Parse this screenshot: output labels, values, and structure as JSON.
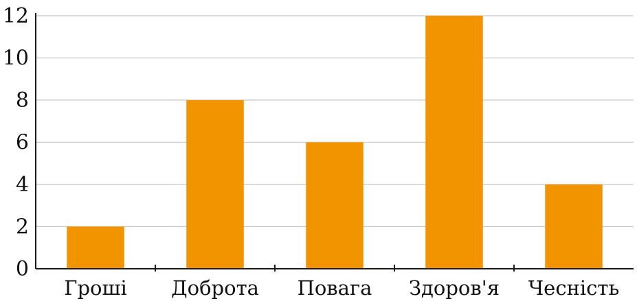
{
  "chart_data": {
    "type": "bar",
    "categories": [
      "Гроші",
      "Доброта",
      "Повага",
      "Здоров'я",
      "Чесність"
    ],
    "values": [
      2,
      8,
      6,
      12,
      4
    ],
    "title": "",
    "xlabel": "",
    "ylabel": "",
    "ylim": [
      0,
      12
    ],
    "yticks": [
      "0",
      "2",
      "4",
      "6",
      "8",
      "10",
      "12"
    ],
    "grid": true,
    "legend": "none",
    "bar_color": "#f29400"
  }
}
